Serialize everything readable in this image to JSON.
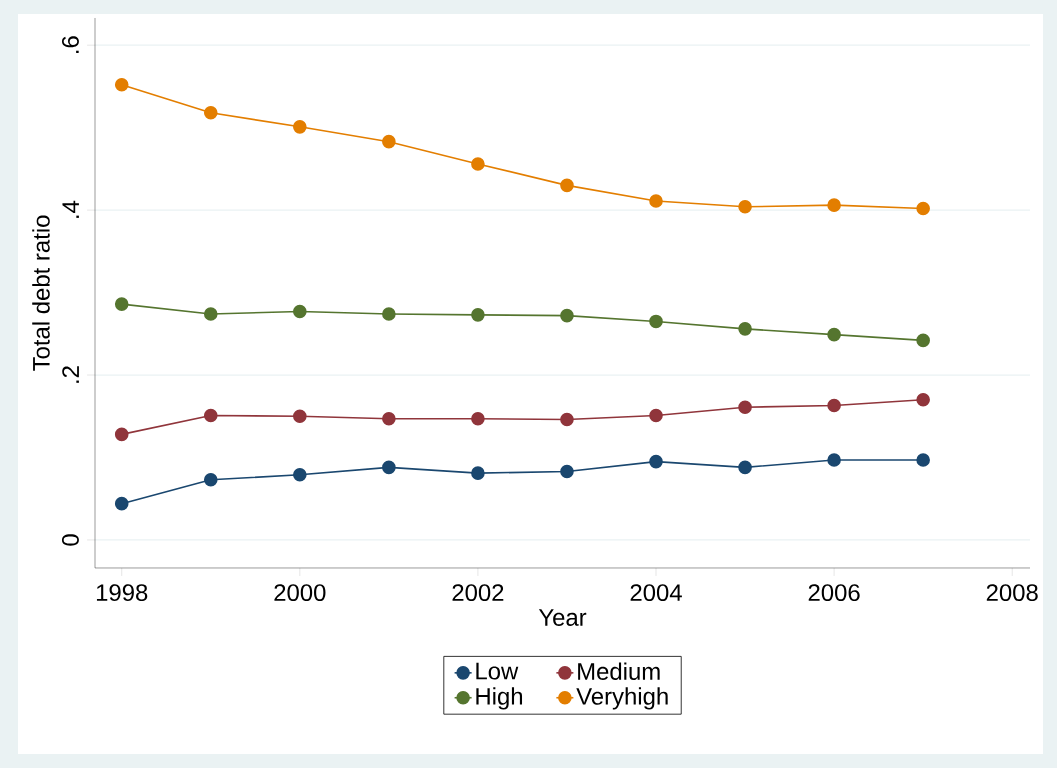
{
  "chart_data": {
    "type": "line",
    "xlabel": "Year",
    "ylabel": "Total debt ratio",
    "x": [
      1998,
      1999,
      2000,
      2001,
      2002,
      2003,
      2004,
      2005,
      2006,
      2007
    ],
    "series": [
      {
        "name": "Low",
        "color": "#1a476f",
        "values": [
          0.044,
          0.073,
          0.079,
          0.088,
          0.081,
          0.083,
          0.095,
          0.088,
          0.097,
          0.097
        ]
      },
      {
        "name": "Medium",
        "color": "#90353b",
        "values": [
          0.128,
          0.151,
          0.15,
          0.147,
          0.147,
          0.146,
          0.151,
          0.161,
          0.163,
          0.17
        ]
      },
      {
        "name": "High",
        "color": "#55752f",
        "values": [
          0.286,
          0.274,
          0.277,
          0.274,
          0.273,
          0.272,
          0.265,
          0.256,
          0.249,
          0.242
        ]
      },
      {
        "name": "Veryhigh",
        "color": "#e37e00",
        "values": [
          0.552,
          0.518,
          0.501,
          0.483,
          0.456,
          0.43,
          0.411,
          0.404,
          0.406,
          0.402
        ]
      }
    ],
    "xlim": [
      1997.7,
      2008.2
    ],
    "ylim": [
      -0.034,
      0.633
    ],
    "xticks": [
      1998,
      2000,
      2002,
      2004,
      2006,
      2008
    ],
    "yticks": [
      0,
      {
        "value": 0.2,
        "label": ".2"
      },
      {
        "value": 0.4,
        "label": ".4"
      },
      {
        "value": 0.6,
        "label": ".6"
      }
    ],
    "grid": "y",
    "legend": "bottom",
    "marker": "circle",
    "line_style": "solid"
  }
}
